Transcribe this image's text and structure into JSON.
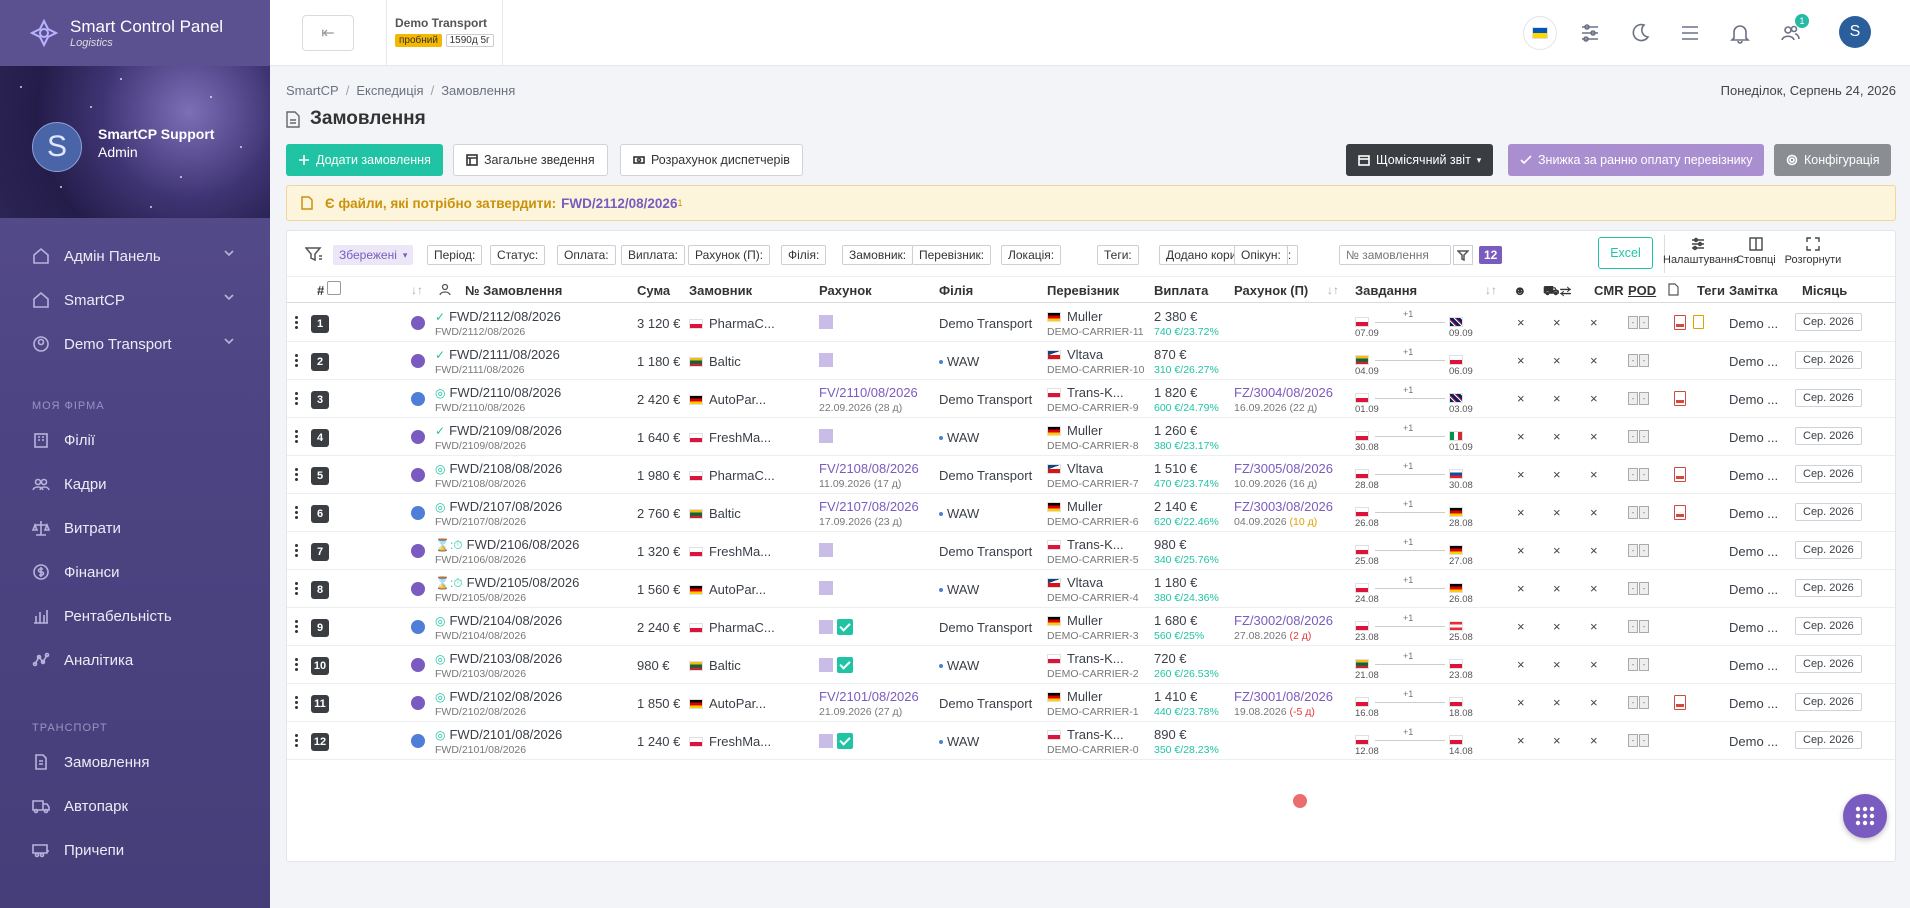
{
  "sidebar": {
    "brand_title": "Smart Control Panel",
    "brand_sub": "Logistics",
    "user_initial": "S",
    "user_name": "SmartCP Support",
    "user_role": "Admin",
    "menu1": [
      {
        "label": "Адмін Панель",
        "icon": "home-icon"
      },
      {
        "label": "SmartCP",
        "icon": "home-icon"
      },
      {
        "label": "Demo Transport",
        "icon": "user-circle-icon"
      }
    ],
    "section_firm": "МОЯ ФІРМА",
    "menu2": [
      {
        "label": "Філії",
        "icon": "building-icon"
      },
      {
        "label": "Кадри",
        "icon": "users-icon"
      },
      {
        "label": "Витрати",
        "icon": "scale-icon"
      },
      {
        "label": "Фінанси",
        "icon": "dollar-icon"
      },
      {
        "label": "Рентабельність",
        "icon": "chart-bar-icon"
      },
      {
        "label": "Аналітика",
        "icon": "analytics-icon"
      }
    ],
    "section_transport": "ТРАНСПОРТ",
    "menu3": [
      {
        "label": "Замовлення",
        "icon": "doc-icon"
      },
      {
        "label": "Автопарк",
        "icon": "truck-icon"
      },
      {
        "label": "Причепи",
        "icon": "trailer-icon"
      }
    ]
  },
  "topbar": {
    "back_symbol": "⇤",
    "company_name": "Demo Transport",
    "trial_badge": "пробний",
    "days_badge": "1590д 5г",
    "users_count": "1",
    "profile_initial": "S"
  },
  "breadcrumb": [
    "SmartCP",
    "Експедиція",
    "Замовлення"
  ],
  "date": "Понеділок, Серпень 24, 2026",
  "page_title": "Замовлення",
  "buttons": {
    "add": "Додати замовлення",
    "summary": "Загальне зведення",
    "dispatchers": "Розрахунок диспетчерів",
    "monthly": "Щомісячний звіт",
    "discount": "Знижка за ранню оплату перевізнику",
    "config": "Конфігурація"
  },
  "alert": {
    "text": "Є файли, які потрібно затвердити:",
    "link": "FWD/2112/08/2026",
    "sup": "1"
  },
  "filters": {
    "saved": "Збережені",
    "chips": [
      "Період:",
      "Статус:",
      "Оплата:",
      "Виплата:",
      "Рахунок (П):",
      "Філія:",
      "Замовник:",
      "Перевізник:",
      "Локація:",
      "Теги:",
      "Додано користувачем:",
      "Опікун:"
    ],
    "search_placeholder": "№ замовлення",
    "count": "12",
    "excel": "Excel",
    "tool_settings": "Налаштування",
    "tool_columns": "Стовпці",
    "tool_expand": "Розгорнути"
  },
  "columns": {
    "num": "#",
    "order": "№ Замовлення",
    "sum": "Сума",
    "customer": "Замовник",
    "invoice": "Рахунок",
    "branch": "Філія",
    "carrier": "Перевізник",
    "payout": "Виплата",
    "invoice_p": "Рахунок (П)",
    "tasks": "Завдання",
    "cmr": "CMR",
    "pod": "POD",
    "tags": "Теги",
    "note": "Замітка",
    "month": "Місяць"
  },
  "rows": [
    {
      "n": "1",
      "status": "✓",
      "order": "FWD/2112/08/2026",
      "sub": "FWD/2112/08/2026",
      "sum": "3 120 €",
      "cflag": "pl",
      "customer": "PharmaC...",
      "inv": "",
      "inv_sub": "",
      "inv_check": false,
      "branch": "Demo Transport",
      "branch_dot": false,
      "kflag": "de",
      "carrier": "Muller",
      "carrier_sub": "DEMO-CARRIER-11",
      "pay": "2 380 €",
      "pay_sub": "740 €/23.72%",
      "invp": "",
      "invp_sub": "",
      "invp_days": "",
      "invp_cls": "",
      "f1": "pl",
      "f2": "gb",
      "d1": "07.09",
      "d2": "09.09",
      "plus": "+1",
      "pdf": true,
      "doc": true,
      "note": "Demo ...",
      "month": "Сер. 2026",
      "tic": "v"
    },
    {
      "n": "2",
      "status": "✓",
      "order": "FWD/2111/08/2026",
      "sub": "FWD/2111/08/2026",
      "sum": "1 180 €",
      "cflag": "lt",
      "customer": "Baltic",
      "inv": "",
      "inv_sub": "",
      "inv_check": false,
      "branch": "WAW",
      "branch_dot": true,
      "kflag": "cz",
      "carrier": "Vltava",
      "carrier_sub": "DEMO-CARRIER-10",
      "pay": "870 €",
      "pay_sub": "310 €/26.27%",
      "invp": "",
      "invp_sub": "",
      "invp_days": "",
      "invp_cls": "",
      "f1": "lt",
      "f2": "pl",
      "d1": "04.09",
      "d2": "06.09",
      "plus": "+1",
      "pdf": false,
      "doc": false,
      "note": "Demo ...",
      "month": "Сер. 2026",
      "tic": "v"
    },
    {
      "n": "3",
      "status": "◎",
      "order": "FWD/2110/08/2026",
      "sub": "FWD/2110/08/2026",
      "sum": "2 420 €",
      "cflag": "de",
      "customer": "AutoPar...",
      "inv": "FV/2110/08/2026",
      "inv_sub": "22.09.2026 (28 д)",
      "inv_check": false,
      "branch": "Demo Transport",
      "branch_dot": false,
      "kflag": "pl",
      "carrier": "Trans-K...",
      "carrier_sub": "DEMO-CARRIER-9",
      "pay": "1 820 €",
      "pay_sub": "600 €/24.79%",
      "invp": "FZ/3004/08/2026",
      "invp_sub": "16.09.2026",
      "invp_days": "(22 д)",
      "invp_cls": "",
      "f1": "pl",
      "f2": "gb",
      "d1": "01.09",
      "d2": "03.09",
      "plus": "+1",
      "pdf": true,
      "doc": false,
      "note": "Demo ...",
      "month": "Сер. 2026",
      "tic": "b"
    },
    {
      "n": "4",
      "status": "✓",
      "order": "FWD/2109/08/2026",
      "sub": "FWD/2109/08/2026",
      "sum": "1 640 €",
      "cflag": "pl",
      "customer": "FreshMa...",
      "inv": "",
      "inv_sub": "",
      "inv_check": false,
      "branch": "WAW",
      "branch_dot": true,
      "kflag": "de",
      "carrier": "Muller",
      "carrier_sub": "DEMO-CARRIER-8",
      "pay": "1 260 €",
      "pay_sub": "380 €/23.17%",
      "invp": "",
      "invp_sub": "",
      "invp_days": "",
      "invp_cls": "",
      "f1": "pl",
      "f2": "it",
      "d1": "30.08",
      "d2": "01.09",
      "plus": "+1",
      "pdf": false,
      "doc": false,
      "note": "Demo ...",
      "month": "Сер. 2026",
      "tic": "v"
    },
    {
      "n": "5",
      "status": "◎",
      "order": "FWD/2108/08/2026",
      "sub": "FWD/2108/08/2026",
      "sum": "1 980 €",
      "cflag": "pl",
      "customer": "PharmaC...",
      "inv": "FV/2108/08/2026",
      "inv_sub": "11.09.2026 (17 д)",
      "inv_check": false,
      "branch": "Demo Transport",
      "branch_dot": false,
      "kflag": "cz",
      "carrier": "Vltava",
      "carrier_sub": "DEMO-CARRIER-7",
      "pay": "1 510 €",
      "pay_sub": "470 €/23.74%",
      "invp": "FZ/3005/08/2026",
      "invp_sub": "10.09.2026",
      "invp_days": "(16 д)",
      "invp_cls": "",
      "f1": "pl",
      "f2": "sk",
      "d1": "28.08",
      "d2": "30.08",
      "plus": "+1",
      "pdf": true,
      "doc": false,
      "note": "Demo ...",
      "month": "Сер. 2026",
      "tic": "v"
    },
    {
      "n": "6",
      "status": "◎",
      "order": "FWD/2107/08/2026",
      "sub": "FWD/2107/08/2026",
      "sum": "2 760 €",
      "cflag": "lt",
      "customer": "Baltic",
      "inv": "FV/2107/08/2026",
      "inv_sub": "17.09.2026 (23 д)",
      "inv_check": false,
      "branch": "WAW",
      "branch_dot": true,
      "kflag": "de",
      "carrier": "Muller",
      "carrier_sub": "DEMO-CARRIER-6",
      "pay": "2 140 €",
      "pay_sub": "620 €/22.46%",
      "invp": "FZ/3003/08/2026",
      "invp_sub": "04.09.2026",
      "invp_days": "(10 д)",
      "invp_cls": "o",
      "f1": "pl",
      "f2": "de",
      "d1": "26.08",
      "d2": "28.08",
      "plus": "+1",
      "pdf": true,
      "doc": false,
      "note": "Demo ...",
      "month": "Сер. 2026",
      "tic": "b"
    },
    {
      "n": "7",
      "status": "⌛:⏱",
      "order": "FWD/2106/08/2026",
      "sub": "FWD/2106/08/2026",
      "sum": "1 320 €",
      "cflag": "pl",
      "customer": "FreshMa...",
      "inv": "",
      "inv_sub": "",
      "inv_check": false,
      "branch": "Demo Transport",
      "branch_dot": false,
      "kflag": "pl",
      "carrier": "Trans-K...",
      "carrier_sub": "DEMO-CARRIER-5",
      "pay": "980 €",
      "pay_sub": "340 €/25.76%",
      "invp": "",
      "invp_sub": "",
      "invp_days": "",
      "invp_cls": "",
      "f1": "pl",
      "f2": "de",
      "d1": "25.08",
      "d2": "27.08",
      "plus": "+1",
      "pdf": false,
      "doc": false,
      "note": "Demo ...",
      "month": "Сер. 2026",
      "tic": "v"
    },
    {
      "n": "8",
      "status": "⌛:⏱",
      "order": "FWD/2105/08/2026",
      "sub": "FWD/2105/08/2026",
      "sum": "1 560 €",
      "cflag": "de",
      "customer": "AutoPar...",
      "inv": "",
      "inv_sub": "",
      "inv_check": false,
      "branch": "WAW",
      "branch_dot": true,
      "kflag": "cz",
      "carrier": "Vltava",
      "carrier_sub": "DEMO-CARRIER-4",
      "pay": "1 180 €",
      "pay_sub": "380 €/24.36%",
      "invp": "",
      "invp_sub": "",
      "invp_days": "",
      "invp_cls": "",
      "f1": "pl",
      "f2": "de",
      "d1": "24.08",
      "d2": "26.08",
      "plus": "+1",
      "pdf": false,
      "doc": false,
      "note": "Demo ...",
      "month": "Сер. 2026",
      "tic": "v"
    },
    {
      "n": "9",
      "status": "◎",
      "order": "FWD/2104/08/2026",
      "sub": "FWD/2104/08/2026",
      "sum": "2 240 €",
      "cflag": "pl",
      "customer": "PharmaC...",
      "inv": "",
      "inv_sub": "",
      "inv_check": true,
      "branch": "Demo Transport",
      "branch_dot": false,
      "kflag": "de",
      "carrier": "Muller",
      "carrier_sub": "DEMO-CARRIER-3",
      "pay": "1 680 €",
      "pay_sub": "560 €/25%",
      "invp": "FZ/3002/08/2026",
      "invp_sub": "27.08.2026",
      "invp_days": "(2 д)",
      "invp_cls": "r",
      "f1": "pl",
      "f2": "at",
      "d1": "23.08",
      "d2": "25.08",
      "plus": "+1",
      "pdf": false,
      "doc": false,
      "note": "Demo ...",
      "month": "Сер. 2026",
      "tic": "b"
    },
    {
      "n": "10",
      "status": "◎",
      "order": "FWD/2103/08/2026",
      "sub": "FWD/2103/08/2026",
      "sum": "980 €",
      "cflag": "lt",
      "customer": "Baltic",
      "inv": "",
      "inv_sub": "",
      "inv_check": true,
      "branch": "WAW",
      "branch_dot": true,
      "kflag": "pl",
      "carrier": "Trans-K...",
      "carrier_sub": "DEMO-CARRIER-2",
      "pay": "720 €",
      "pay_sub": "260 €/26.53%",
      "invp": "",
      "invp_sub": "",
      "invp_days": "",
      "invp_cls": "",
      "f1": "lt",
      "f2": "pl",
      "d1": "21.08",
      "d2": "23.08",
      "plus": "+1",
      "pdf": false,
      "doc": false,
      "note": "Demo ...",
      "month": "Сер. 2026",
      "tic": "v"
    },
    {
      "n": "11",
      "status": "◎",
      "order": "FWD/2102/08/2026",
      "sub": "FWD/2102/08/2026",
      "sum": "1 850 €",
      "cflag": "de",
      "customer": "AutoPar...",
      "inv": "FV/2101/08/2026",
      "inv_sub": "21.09.2026 (27 д)",
      "inv_check": false,
      "branch": "Demo Transport",
      "branch_dot": false,
      "kflag": "de",
      "carrier": "Muller",
      "carrier_sub": "DEMO-CARRIER-1",
      "pay": "1 410 €",
      "pay_sub": "440 €/23.78%",
      "invp": "FZ/3001/08/2026",
      "invp_sub": "19.08.2026",
      "invp_days": "(-5 д)",
      "invp_cls": "r",
      "f1": "pl",
      "f2": "pl",
      "d1": "16.08",
      "d2": "18.08",
      "plus": "+1",
      "pdf": true,
      "doc": false,
      "note": "Demo ...",
      "month": "Сер. 2026",
      "tic": "v"
    },
    {
      "n": "12",
      "status": "◎",
      "order": "FWD/2101/08/2026",
      "sub": "FWD/2101/08/2026",
      "sum": "1 240 €",
      "cflag": "pl",
      "customer": "FreshMa...",
      "inv": "",
      "inv_sub": "",
      "inv_check": true,
      "branch": "WAW",
      "branch_dot": true,
      "kflag": "pl",
      "carrier": "Trans-K...",
      "carrier_sub": "DEMO-CARRIER-0",
      "pay": "890 €",
      "pay_sub": "350 €/28.23%",
      "invp": "",
      "invp_sub": "",
      "invp_days": "",
      "invp_cls": "",
      "f1": "pl",
      "f2": "pl",
      "d1": "12.08",
      "d2": "14.08",
      "plus": "+1",
      "pdf": false,
      "doc": false,
      "note": "Demo ...",
      "month": "Сер. 2026",
      "tic": "b"
    }
  ],
  "cell_x": "×",
  "pod_marks": [
    "-",
    "-"
  ],
  "colors": {
    "accent": "#7a5bbf",
    "teal": "#20c4a4",
    "sidebar": "#4d4583"
  }
}
